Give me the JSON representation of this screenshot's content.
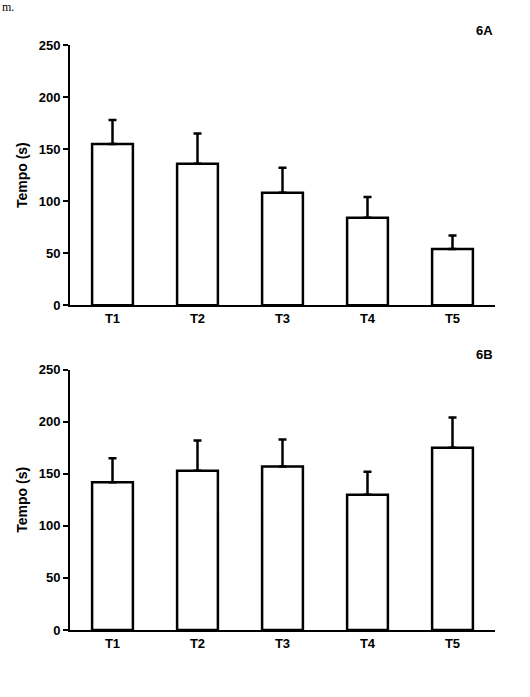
{
  "header": "m.",
  "chart_data": [
    {
      "type": "bar",
      "title": "6A",
      "y_label": "Tempo (s)",
      "categories": [
        "T1",
        "T2",
        "T3",
        "T4",
        "T5"
      ],
      "values": [
        155,
        136,
        108,
        84,
        54
      ],
      "errors": [
        23,
        29,
        24,
        20,
        13
      ],
      "color": "#ffffff",
      "ylim": [
        0,
        250
      ],
      "yticks": [
        0,
        50,
        100,
        150,
        200,
        250
      ],
      "grid": false
    },
    {
      "type": "bar",
      "title": "6B",
      "y_label": "Tempo (s)",
      "categories": [
        "T1",
        "T2",
        "T3",
        "T4",
        "T5"
      ],
      "values": [
        142,
        153,
        157,
        130,
        175
      ],
      "errors": [
        23,
        29,
        26,
        22,
        29
      ],
      "color": "#ffffff",
      "ylim": [
        0,
        250
      ],
      "yticks": [
        0,
        50,
        100,
        150,
        200,
        250
      ],
      "grid": false
    }
  ]
}
